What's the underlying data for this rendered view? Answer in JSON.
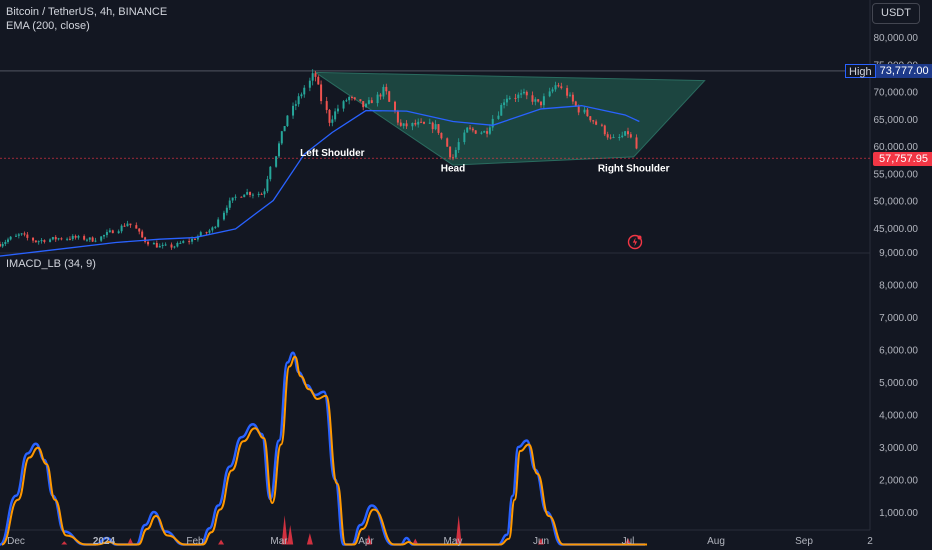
{
  "header": {
    "symbol": "Bitcoin / TetherUS, 4h, BINANCE",
    "indicator": "EMA (200, close)",
    "macd_title": "IMACD_LB (34, 9)"
  },
  "currency_button": "USDT",
  "high_tag": {
    "label": "High",
    "value": "73,777.00"
  },
  "last_price_tag": "57,757.95",
  "colors": {
    "background": "#131722",
    "up": "#26a69a",
    "down": "#ef5350",
    "ema": "#2962ff",
    "pattern_fill": "#1e4d45",
    "macd_orange": "#ff9800",
    "macd_blue": "#2962ff",
    "histogram": "#f23645",
    "axis_text": "#b2b5be",
    "last_price": "#f23645"
  },
  "chart_data": [
    {
      "type": "candlestick",
      "title": "Bitcoin / TetherUS, 4h, BINANCE",
      "x_ticks": [
        "Dec",
        "2024",
        "Feb",
        "Mar",
        "Apr",
        "May",
        "Jun",
        "Jul",
        "Aug",
        "Sep",
        "2"
      ],
      "y_ticks": [
        "80,000.00",
        "75,000.00",
        "70,000.00",
        "65,000.00",
        "60,000.00",
        "55,000.00",
        "50,000.00",
        "45,000.00"
      ],
      "ylim": [
        40500,
        83000
      ],
      "grid": false,
      "series": [
        {
          "name": "Bitcoin / TetherUS",
          "type": "price",
          "dates": [
            "2023-11-25",
            "2023-12-03",
            "2023-12-08",
            "2023-12-15",
            "2023-12-22",
            "2023-12-29",
            "2024-01-05",
            "2024-01-10",
            "2024-01-15",
            "2024-01-20",
            "2024-01-25",
            "2024-02-01",
            "2024-02-08",
            "2024-02-12",
            "2024-02-18",
            "2024-02-25",
            "2024-02-28",
            "2024-03-05",
            "2024-03-10",
            "2024-03-14",
            "2024-03-19",
            "2024-03-26",
            "2024-04-01",
            "2024-04-08",
            "2024-04-13",
            "2024-04-19",
            "2024-04-26",
            "2024-05-01",
            "2024-05-06",
            "2024-05-13",
            "2024-05-20",
            "2024-05-27",
            "2024-06-01",
            "2024-06-07",
            "2024-06-14",
            "2024-06-20",
            "2024-06-26",
            "2024-07-02",
            "2024-07-05"
          ],
          "values": [
            42000,
            43800,
            42500,
            43000,
            43200,
            42800,
            44500,
            46000,
            42800,
            41500,
            41600,
            43000,
            45000,
            49000,
            51500,
            51200,
            57000,
            66000,
            70000,
            73500,
            64500,
            69000,
            67000,
            70500,
            63500,
            64000,
            63500,
            57500,
            63000,
            62500,
            69000,
            69300,
            67500,
            71500,
            67000,
            64500,
            61000,
            62500,
            58000
          ]
        },
        {
          "name": "EMA (200, close)",
          "type": "ema",
          "dates": [
            "2023-11-25",
            "2023-12-15",
            "2024-01-05",
            "2024-01-20",
            "2024-02-01",
            "2024-02-15",
            "2024-02-28",
            "2024-03-10",
            "2024-03-20",
            "2024-04-01",
            "2024-04-15",
            "2024-05-01",
            "2024-05-15",
            "2024-06-01",
            "2024-06-15",
            "2024-06-30",
            "2024-07-05"
          ],
          "values": [
            39800,
            41000,
            42300,
            42900,
            43200,
            44800,
            50000,
            58500,
            62500,
            66500,
            66400,
            64500,
            63800,
            66800,
            67400,
            65700,
            64500
          ]
        }
      ],
      "annotations": [
        {
          "text": "Left Shoulder",
          "date": "2024-03-20",
          "price": 58200
        },
        {
          "text": "Head",
          "date": "2024-05-01",
          "price": 55300
        },
        {
          "text": "Right Shoulder",
          "date": "2024-07-03",
          "price": 55300
        }
      ],
      "high_line": 73777.0,
      "last_price": 57757.95
    },
    {
      "type": "line",
      "title": "IMACD_LB (34, 9)",
      "y_ticks": [
        "9,000.00",
        "8,000.00",
        "7,000.00",
        "6,000.00",
        "5,000.00",
        "4,000.00",
        "3,000.00",
        "2,000.00",
        "1,000.00"
      ],
      "ylim": [
        0,
        9000
      ],
      "series": [
        {
          "name": "IMACD_LB",
          "dates": [
            "2023-11-25",
            "2023-12-01",
            "2023-12-05",
            "2023-12-08",
            "2023-12-11",
            "2023-12-14",
            "2023-12-18",
            "2023-12-25",
            "2023-12-29",
            "2024-01-02",
            "2024-01-05",
            "2024-01-08",
            "2024-01-12",
            "2024-01-15",
            "2024-01-18",
            "2024-01-22",
            "2024-01-28",
            "2024-02-03",
            "2024-02-06",
            "2024-02-09",
            "2024-02-13",
            "2024-02-17",
            "2024-02-21",
            "2024-02-24",
            "2024-02-27",
            "2024-03-01",
            "2024-03-04",
            "2024-03-06",
            "2024-03-08",
            "2024-03-11",
            "2024-03-14",
            "2024-03-17",
            "2024-03-21",
            "2024-03-24",
            "2024-03-27",
            "2024-03-30",
            "2024-04-03",
            "2024-04-10",
            "2024-04-13",
            "2024-04-15",
            "2024-04-17",
            "2024-04-20",
            "2024-04-25",
            "2024-04-28",
            "2024-05-02",
            "2024-05-06",
            "2024-05-12",
            "2024-05-15",
            "2024-05-17",
            "2024-05-20",
            "2024-05-22",
            "2024-05-24",
            "2024-05-27",
            "2024-05-30",
            "2024-06-03",
            "2024-06-08",
            "2024-06-11",
            "2024-06-14",
            "2024-06-18",
            "2024-06-22",
            "2024-06-27",
            "2024-07-03",
            "2024-07-07"
          ],
          "values": [
            0,
            1500,
            2800,
            3100,
            2600,
            1500,
            400,
            0,
            0,
            200,
            0,
            0,
            0,
            600,
            1000,
            400,
            0,
            0,
            500,
            1200,
            2400,
            3300,
            3700,
            3400,
            1400,
            3200,
            5600,
            5900,
            5300,
            4900,
            4600,
            4700,
            2000,
            0,
            0,
            600,
            1200,
            0,
            0,
            200,
            0,
            0,
            0,
            0,
            0,
            0,
            0,
            0,
            0,
            300,
            1500,
            3000,
            3200,
            2300,
            1000,
            0,
            0,
            0,
            0,
            0,
            0,
            0,
            0
          ]
        }
      ],
      "histogram_dates": [
        "2023-12-18",
        "2024-01-10",
        "2024-02-10",
        "2024-03-03",
        "2024-03-05",
        "2024-03-12",
        "2024-04-02",
        "2024-04-18",
        "2024-05-03",
        "2024-06-01",
        "2024-07-01"
      ],
      "histogram_values": [
        100,
        200,
        150,
        900,
        600,
        350,
        300,
        180,
        900,
        200,
        200
      ]
    }
  ]
}
